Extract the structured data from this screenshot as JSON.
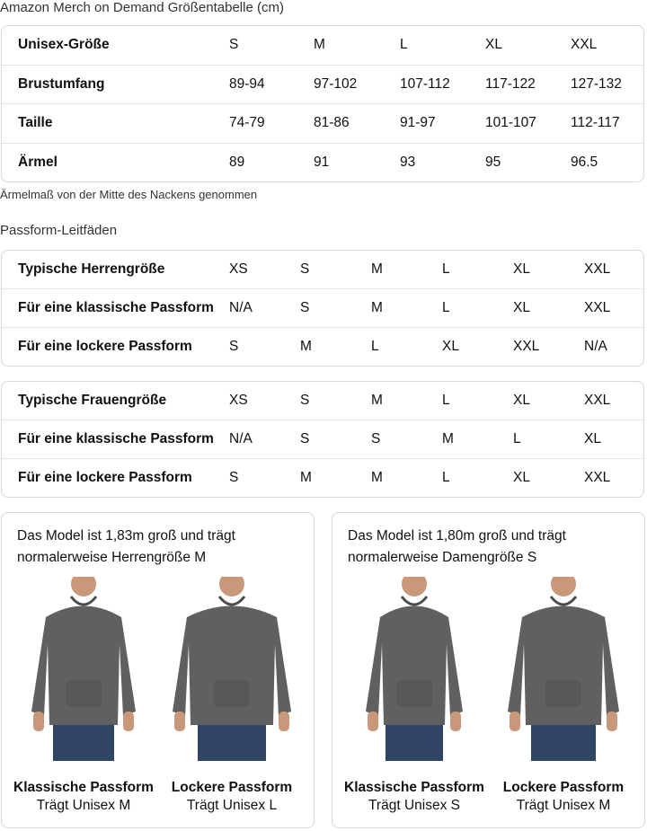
{
  "size_chart": {
    "title": "Amazon Merch on Demand Größentabelle (cm)",
    "rows": [
      {
        "label": "Unisex-Größe",
        "values": [
          "S",
          "M",
          "L",
          "XL",
          "XXL"
        ]
      },
      {
        "label": "Brustumfang",
        "values": [
          "89-94",
          "97-102",
          "107-112",
          "117-122",
          "127-132"
        ]
      },
      {
        "label": "Taille",
        "values": [
          "74-79",
          "81-86",
          "91-97",
          "101-107",
          "112-117"
        ]
      },
      {
        "label": "Ärmel",
        "values": [
          "89",
          "91",
          "93",
          "95",
          "96.5"
        ]
      }
    ],
    "note": "Ärmelmaß von der Mitte des Nackens genommen"
  },
  "fit_guides": {
    "title": "Passform-Leitfäden",
    "men": [
      {
        "label": "Typische Herrengröße",
        "values": [
          "XS",
          "S",
          "M",
          "L",
          "XL",
          "XXL"
        ]
      },
      {
        "label": "Für eine klassische Passform",
        "values": [
          "N/A",
          "S",
          "M",
          "L",
          "XL",
          "XXL"
        ]
      },
      {
        "label": "Für eine lockere Passform",
        "values": [
          "S",
          "M",
          "L",
          "XL",
          "XXL",
          "N/A"
        ]
      }
    ],
    "women": [
      {
        "label": "Typische Frauengröße",
        "values": [
          "XS",
          "S",
          "M",
          "L",
          "XL",
          "XXL"
        ]
      },
      {
        "label": "Für eine klassische Passform",
        "values": [
          "N/A",
          "S",
          "S",
          "M",
          "L",
          "XL"
        ]
      },
      {
        "label": "Für eine lockere Passform",
        "values": [
          "S",
          "M",
          "M",
          "L",
          "XL",
          "XXL"
        ]
      }
    ]
  },
  "models": [
    {
      "caption": "Das Model ist 1,83m groß und trägt normalerweise Herrengröße M",
      "figures": [
        {
          "name": "Klassische Passform",
          "size": "Trägt Unisex M"
        },
        {
          "name": "Lockere Passform",
          "size": "Trägt Unisex L"
        }
      ]
    },
    {
      "caption": "Das Model ist 1,80m groß und trägt normalerweise Damengröße S",
      "figures": [
        {
          "name": "Klassische Passform",
          "size": "Trägt Unisex S"
        },
        {
          "name": "Lockere Passform",
          "size": "Trägt Unisex M"
        }
      ]
    }
  ],
  "colors": {
    "hoodie": "#5f6060",
    "jeans": "#2f4466",
    "skin": "#c9987a",
    "border": "#d5d9d9"
  }
}
